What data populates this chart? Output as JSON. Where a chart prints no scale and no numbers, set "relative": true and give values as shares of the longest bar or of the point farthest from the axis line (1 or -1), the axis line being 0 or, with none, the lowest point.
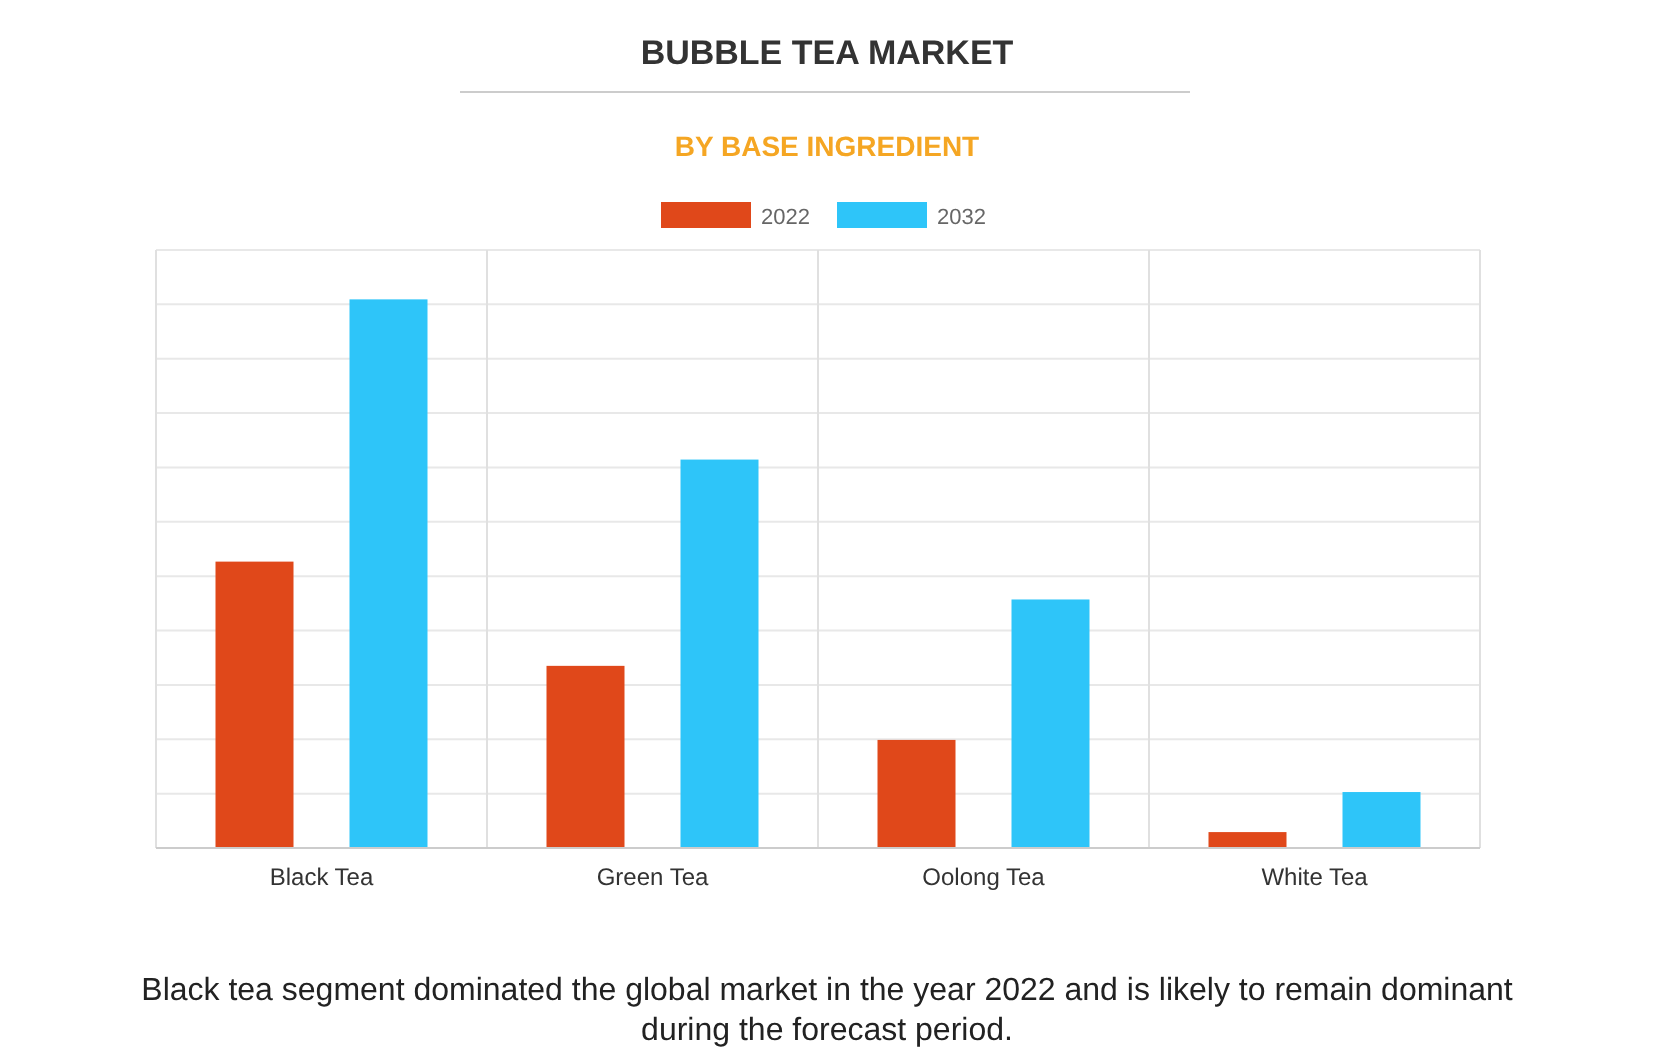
{
  "chart_data": {
    "type": "bar",
    "title": "BUBBLE TEA MARKET",
    "subtitle": "BY BASE INGREDIENT",
    "categories": [
      "Black Tea",
      "Green Tea",
      "Oolong Tea",
      "White Tea"
    ],
    "series": [
      {
        "name": "2022",
        "color": "#e0481a",
        "values": [
          0.522,
          0.332,
          0.197,
          0.029
        ]
      },
      {
        "name": "2032",
        "color": "#2ec5f9",
        "values": [
          1,
          0.708,
          0.453,
          0.102
        ]
      }
    ],
    "relative": true,
    "grid": true,
    "legend": "top",
    "annotations": [
      "Black tea segment dominated the global market in the year 2022 and is likely to remain dominant during the forecast period."
    ]
  }
}
